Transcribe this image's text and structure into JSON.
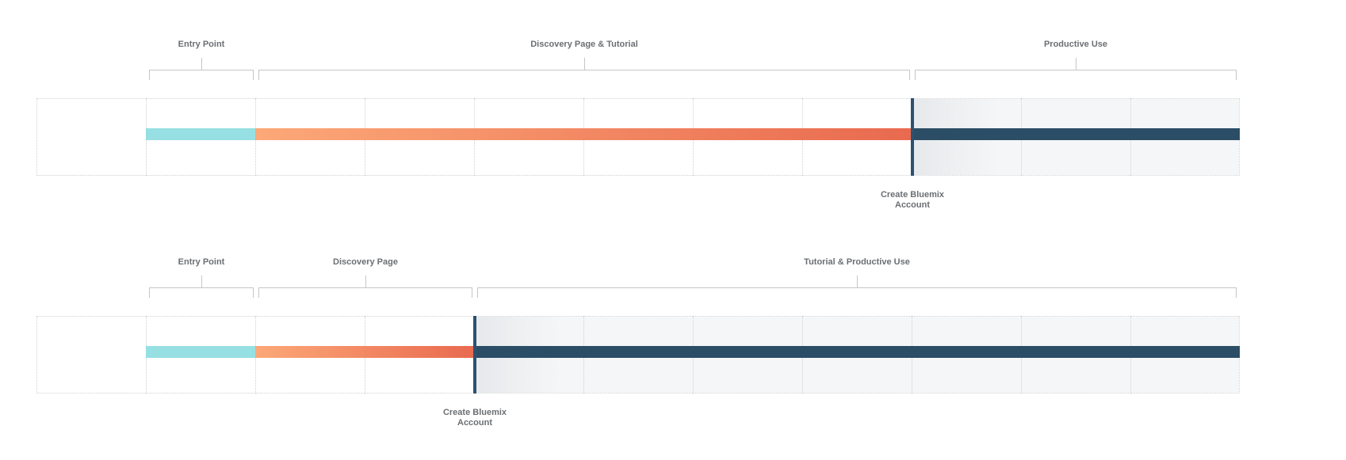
{
  "diagrams": [
    {
      "phases": [
        "Entry Point",
        "Discovery Page & Tutorial",
        "Productive Use"
      ],
      "marker_label": "Create Bluemix Account",
      "entry_columns": 1,
      "discovery_columns": 6,
      "total_columns": 11
    },
    {
      "phases": [
        "Entry Point",
        "Discovery Page",
        "Tutorial & Productive Use"
      ],
      "marker_label": "Create Bluemix Account",
      "entry_columns": 1,
      "discovery_columns": 2,
      "total_columns": 11
    }
  ],
  "colors": {
    "entry": "#96dfe2",
    "discovery_start": "#fca878",
    "discovery_end": "#e96a4f",
    "productive": "#2b4e66",
    "marker": "#2d5170"
  }
}
